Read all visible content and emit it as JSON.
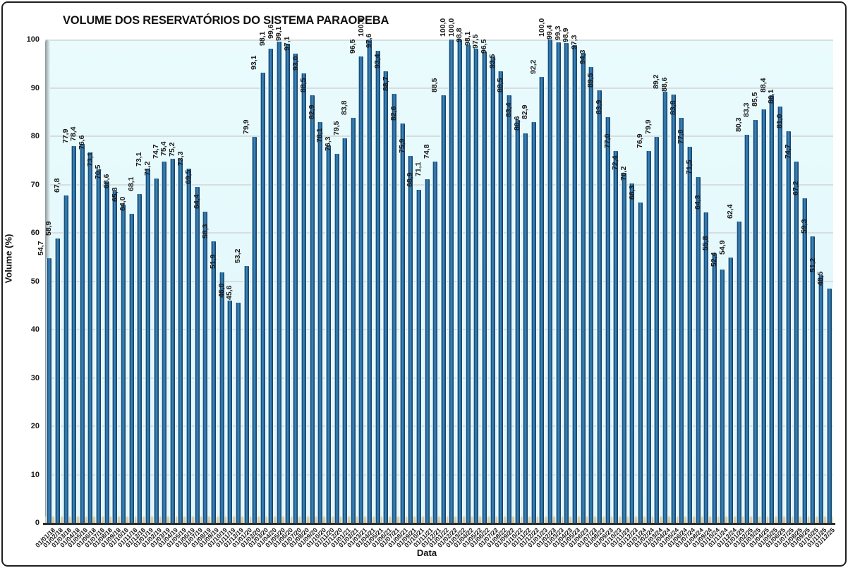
{
  "title": "VOLUME DOS RESERVATÓRIOS DO SISTEMA PARAOPEBA",
  "y_axis": {
    "label": "Volume (%)",
    "ticks": [
      0,
      10,
      20,
      30,
      40,
      50,
      60,
      70,
      80,
      90,
      100
    ]
  },
  "x_axis": {
    "label": "Data"
  },
  "colors": {
    "bar_main": "#2e74ab",
    "bar_dark": "#17456e",
    "bar_light": "#4288bd",
    "plot_background": "#e4f8fb",
    "gridline": "#d7dde0",
    "floor": "#d6cda4",
    "axis_line": "#2e2e2e",
    "outer_border": "#1f1f1f"
  },
  "chart_data": {
    "type": "bar",
    "title": "VOLUME DOS RESERVATÓRIOS DO SISTEMA PARAOPEBA",
    "xlabel": "Data",
    "ylabel": "Volume (%)",
    "ylim": [
      0,
      100
    ],
    "grid": true,
    "legend": false,
    "value_label_format": "one-decimal-comma",
    "x": [
      "01/01/18",
      "01/02/18",
      "01/03/18",
      "01/04/18",
      "01/05/18",
      "01/06/18",
      "01/07/18",
      "01/08/18",
      "01/09/18",
      "01/10/18",
      "01/11/18",
      "01/12/18",
      "01/01/19",
      "01/02/19",
      "01/03/19",
      "01/04/19",
      "01/05/19",
      "01/06/19",
      "01/07/19",
      "01/08/19",
      "01/09/19",
      "01/10/19",
      "01/11/19",
      "01/12/19",
      "01/01/20",
      "01/02/20",
      "01/03/20",
      "01/04/20",
      "01/05/20",
      "01/06/20",
      "01/07/20",
      "01/08/20",
      "01/09/20",
      "01/10/20",
      "01/11/20",
      "01/12/20",
      "01/01/21",
      "01/02/21",
      "01/03/21",
      "01/04/21",
      "01/05/21",
      "01/06/21",
      "01/07/21",
      "01/08/21",
      "01/09/21",
      "01/10/21",
      "01/11/21",
      "01/12/21",
      "01/01/22",
      "01/02/22",
      "01/03/22",
      "01/04/22",
      "01/05/22",
      "01/06/22",
      "01/07/22",
      "01/08/22",
      "01/09/22",
      "01/10/22",
      "01/11/22",
      "01/12/22",
      "01/01/23",
      "01/02/23",
      "01/03/23",
      "01/04/23",
      "01/05/23",
      "01/06/23",
      "01/07/23",
      "01/08/23",
      "01/09/23",
      "01/10/23",
      "01/11/23",
      "01/12/23",
      "01/01/24",
      "01/02/24",
      "01/03/24",
      "01/04/24",
      "01/05/24",
      "01/06/24",
      "01/07/24",
      "01/08/24",
      "01/09/24",
      "01/10/24",
      "01/11/24",
      "01/12/24",
      "01/01/25",
      "01/02/25",
      "01/03/25",
      "01/04/25",
      "01/05/25",
      "01/06/25",
      "01/07/25",
      "01/08/25",
      "01/09/25",
      "01/10/25",
      "01/11/25",
      "01/12/25"
    ],
    "values": [
      54.7,
      58.9,
      67.8,
      77.9,
      78.4,
      76.6,
      73.1,
      70.5,
      68.6,
      65.8,
      64.0,
      68.1,
      73.1,
      71.2,
      74.7,
      75.4,
      75.2,
      73.3,
      69.5,
      64.4,
      58.3,
      51.9,
      46.0,
      45.6,
      53.2,
      79.9,
      93.1,
      98.1,
      99.6,
      99.1,
      97.1,
      93.0,
      88.5,
      82.9,
      78.1,
      76.3,
      79.5,
      83.8,
      96.5,
      100.0,
      97.6,
      93.4,
      88.7,
      82.6,
      75.9,
      68.9,
      71.1,
      74.8,
      88.5,
      100.0,
      100.0,
      98.8,
      98.1,
      97.5,
      96.5,
      93.5,
      88.5,
      83.4,
      80.6,
      82.9,
      92.2,
      100.0,
      99.4,
      99.3,
      98.9,
      97.3,
      94.3,
      89.5,
      83.9,
      77.0,
      72.4,
      70.2,
      66.3,
      76.9,
      79.9,
      89.2,
      88.6,
      83.8,
      77.8,
      71.5,
      64.3,
      55.8,
      52.4,
      54.9,
      62.4,
      80.3,
      83.3,
      85.5,
      88.4,
      86.1,
      81.0,
      74.7,
      67.2,
      59.3,
      51.2,
      48.5
    ]
  }
}
